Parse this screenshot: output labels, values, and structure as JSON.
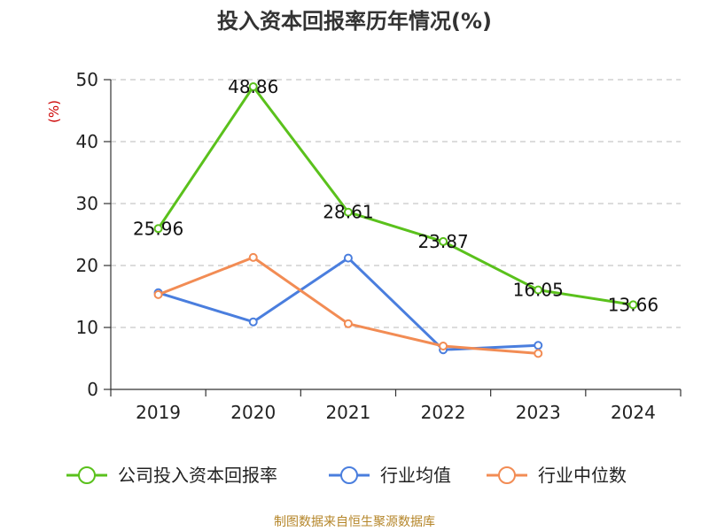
{
  "chart_data": {
    "type": "line",
    "title": "投入资本回报率历年情况(%)",
    "ylabel": "(%)",
    "xlabel": "",
    "categories": [
      "2019",
      "2020",
      "2021",
      "2022",
      "2023",
      "2024"
    ],
    "ylim": [
      0,
      50
    ],
    "yticks": [
      0,
      10,
      20,
      30,
      40,
      50
    ],
    "grid": true,
    "legend_position": "bottom",
    "series": [
      {
        "name": "公司投入资本回报率",
        "color": "#5ac11c",
        "values": [
          25.96,
          48.86,
          28.61,
          23.87,
          16.05,
          13.66
        ],
        "labels": [
          "25.96",
          "48.86",
          "28.61",
          "23.87",
          "16.05",
          "13.66"
        ]
      },
      {
        "name": "行业均值",
        "color": "#4a7ede",
        "values": [
          15.6,
          10.9,
          21.2,
          6.4,
          7.1,
          null
        ]
      },
      {
        "name": "行业中位数",
        "color": "#f28c54",
        "values": [
          15.3,
          21.3,
          10.6,
          7.0,
          5.8,
          null
        ]
      }
    ]
  },
  "source": "制图数据来自恒生聚源数据库"
}
